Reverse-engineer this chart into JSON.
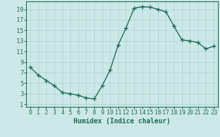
{
  "x": [
    0,
    1,
    2,
    3,
    4,
    5,
    6,
    7,
    8,
    9,
    10,
    11,
    12,
    13,
    14,
    15,
    16,
    17,
    18,
    19,
    20,
    21,
    22,
    23
  ],
  "y": [
    8.0,
    6.5,
    5.5,
    4.5,
    3.2,
    3.0,
    2.7,
    2.2,
    2.0,
    4.5,
    7.5,
    12.2,
    15.5,
    19.2,
    19.5,
    19.4,
    19.0,
    18.5,
    15.8,
    13.2,
    13.0,
    12.7,
    11.5,
    12.0
  ],
  "xlabel": "Humidex (Indice chaleur)",
  "xlim": [
    -0.5,
    23.5
  ],
  "ylim": [
    0.5,
    20.5
  ],
  "yticks": [
    1,
    3,
    5,
    7,
    9,
    11,
    13,
    15,
    17,
    19
  ],
  "xticks": [
    0,
    1,
    2,
    3,
    4,
    5,
    6,
    7,
    8,
    9,
    10,
    11,
    12,
    13,
    14,
    15,
    16,
    17,
    18,
    19,
    20,
    21,
    22,
    23
  ],
  "line_color": "#1a6b5a",
  "marker": "+",
  "marker_size": 4,
  "bg_color": "#cde8e8",
  "grid_color": "#a8d0d0",
  "tick_color": "#1a6b5a",
  "label_color": "#1a6b5a",
  "line_width": 1.0,
  "xlabel_fontsize": 7,
  "tick_fontsize": 6
}
